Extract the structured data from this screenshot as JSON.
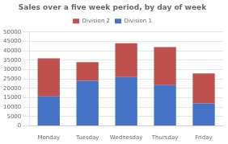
{
  "chart_data": {
    "type": "bar",
    "title": "Sales over a five week period, by day of week",
    "categories": [
      "Monday",
      "Tuesday",
      "Wednesday",
      "Thursday",
      "Friday"
    ],
    "series": [
      {
        "name": "Division 1",
        "color": "#4472C4",
        "values": [
          16000,
          24000,
          26000,
          22000,
          12000
        ]
      },
      {
        "name": "Division 2",
        "color": "#C0504D",
        "values": [
          20000,
          10000,
          18000,
          20000,
          16000
        ]
      }
    ],
    "stacked": true,
    "ylim": [
      0,
      50000
    ],
    "yticks": [
      0,
      5000,
      10000,
      15000,
      20000,
      25000,
      30000,
      35000,
      40000,
      45000,
      50000
    ],
    "grid": true,
    "legend": "top"
  }
}
